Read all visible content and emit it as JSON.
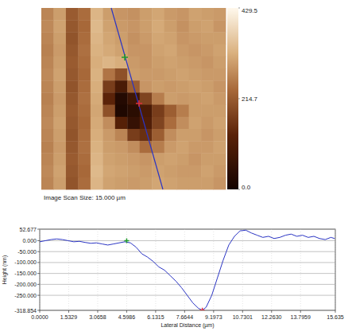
{
  "chart_data": [
    {
      "type": "heatmap",
      "annotation": "Image Scan Size: 15.000 µm",
      "cells": [
        [
          270,
          300,
          215,
          240,
          330,
          300,
          290,
          285,
          300,
          310,
          295,
          290,
          305,
          300,
          295
        ],
        [
          275,
          305,
          210,
          235,
          335,
          305,
          295,
          290,
          300,
          315,
          300,
          285,
          300,
          305,
          290
        ],
        [
          270,
          300,
          205,
          240,
          330,
          310,
          300,
          285,
          295,
          310,
          305,
          290,
          295,
          300,
          300
        ],
        [
          265,
          295,
          210,
          245,
          325,
          315,
          305,
          290,
          290,
          305,
          310,
          295,
          290,
          295,
          305
        ],
        [
          270,
          300,
          215,
          240,
          320,
          330,
          320,
          295,
          290,
          300,
          305,
          300,
          295,
          290,
          300
        ],
        [
          275,
          305,
          210,
          235,
          325,
          250,
          200,
          300,
          295,
          295,
          300,
          305,
          300,
          295,
          295
        ],
        [
          270,
          300,
          205,
          240,
          320,
          170,
          100,
          220,
          290,
          300,
          295,
          300,
          305,
          300,
          290
        ],
        [
          265,
          295,
          210,
          245,
          315,
          130,
          30,
          80,
          180,
          260,
          300,
          295,
          300,
          305,
          295
        ],
        [
          270,
          300,
          215,
          240,
          310,
          200,
          20,
          40,
          100,
          170,
          220,
          260,
          300,
          300,
          300
        ],
        [
          275,
          305,
          210,
          235,
          315,
          280,
          120,
          60,
          110,
          180,
          240,
          280,
          305,
          295,
          305
        ],
        [
          270,
          300,
          205,
          240,
          320,
          295,
          270,
          170,
          150,
          220,
          280,
          300,
          300,
          290,
          300
        ],
        [
          265,
          295,
          210,
          245,
          325,
          300,
          295,
          280,
          240,
          260,
          295,
          305,
          295,
          295,
          305
        ],
        [
          270,
          300,
          215,
          240,
          330,
          305,
          300,
          295,
          290,
          300,
          305,
          300,
          290,
          300,
          300
        ],
        [
          275,
          305,
          210,
          235,
          335,
          310,
          305,
          300,
          295,
          305,
          300,
          295,
          295,
          305,
          295
        ],
        [
          270,
          300,
          205,
          240,
          330,
          305,
          300,
          295,
          300,
          310,
          305,
          300,
          300,
          300,
          290
        ]
      ],
      "colorbar": {
        "range": [
          0,
          429.5
        ],
        "ticks": [
          429.5,
          214.7,
          {
            "value": 0,
            "label": "0.0"
          }
        ]
      }
    },
    {
      "type": "line",
      "x_label": "Lateral Distance (µm)",
      "y_label": "Height (nm)",
      "xlim": [
        0,
        15.635
      ],
      "xticks": [
        {
          "value": 0,
          "label": "0.0000"
        },
        1.5329,
        3.0658,
        4.5986,
        6.1315,
        7.6644,
        9.1973,
        10.7301,
        {
          "value": 12.263,
          "label": "12.2630"
        },
        13.7959,
        15.635
      ],
      "ylim": [
        -318.854,
        52.677
      ],
      "yticks": [
        52.677,
        {
          "value": 0,
          "label": "0.000"
        },
        {
          "value": -50,
          "label": "-50.000"
        },
        {
          "value": -100,
          "label": "-100.000"
        },
        {
          "value": -150,
          "label": "-150.000"
        },
        {
          "value": -200,
          "label": "-200.000"
        },
        {
          "value": -250,
          "label": "-250.000"
        },
        -318.854
      ],
      "grid": true,
      "series": [
        {
          "color": "#2b35c4",
          "x": [
            0,
            0.3,
            0.6,
            0.9,
            1.2,
            1.5,
            1.8,
            2.1,
            2.4,
            2.7,
            3.0,
            3.3,
            3.6,
            3.9,
            4.2,
            4.5,
            4.8,
            5.1,
            5.4,
            5.7,
            6.0,
            6.3,
            6.6,
            6.9,
            7.2,
            7.5,
            7.8,
            8.1,
            8.4,
            8.6,
            8.8,
            9.1,
            9.4,
            9.7,
            10.0,
            10.3,
            10.6,
            10.9,
            11.2,
            11.5,
            11.8,
            12.1,
            12.4,
            12.7,
            13.0,
            13.3,
            13.6,
            13.9,
            14.2,
            14.5,
            14.8,
            15.1,
            15.4,
            15.6
          ],
          "values": [
            -5,
            0,
            5,
            8,
            5,
            0,
            -5,
            -3,
            -8,
            -12,
            -10,
            -15,
            -20,
            -15,
            -10,
            -5,
            -10,
            -30,
            -60,
            -75,
            -95,
            -120,
            -135,
            -160,
            -185,
            -215,
            -250,
            -285,
            -310,
            -318,
            -305,
            -250,
            -170,
            -90,
            -20,
            20,
            45,
            48,
            35,
            25,
            15,
            20,
            10,
            15,
            25,
            30,
            20,
            25,
            15,
            20,
            10,
            5,
            15,
            10
          ]
        },
        {
          "type": "scatter",
          "marker": "plus",
          "color": "#1f9a2a",
          "x": [
            4.6
          ],
          "values": [
            0
          ]
        },
        {
          "type": "scatter",
          "marker": "plus",
          "color": "#e0303a",
          "x": [
            8.6
          ],
          "values": [
            -318
          ]
        }
      ]
    }
  ]
}
